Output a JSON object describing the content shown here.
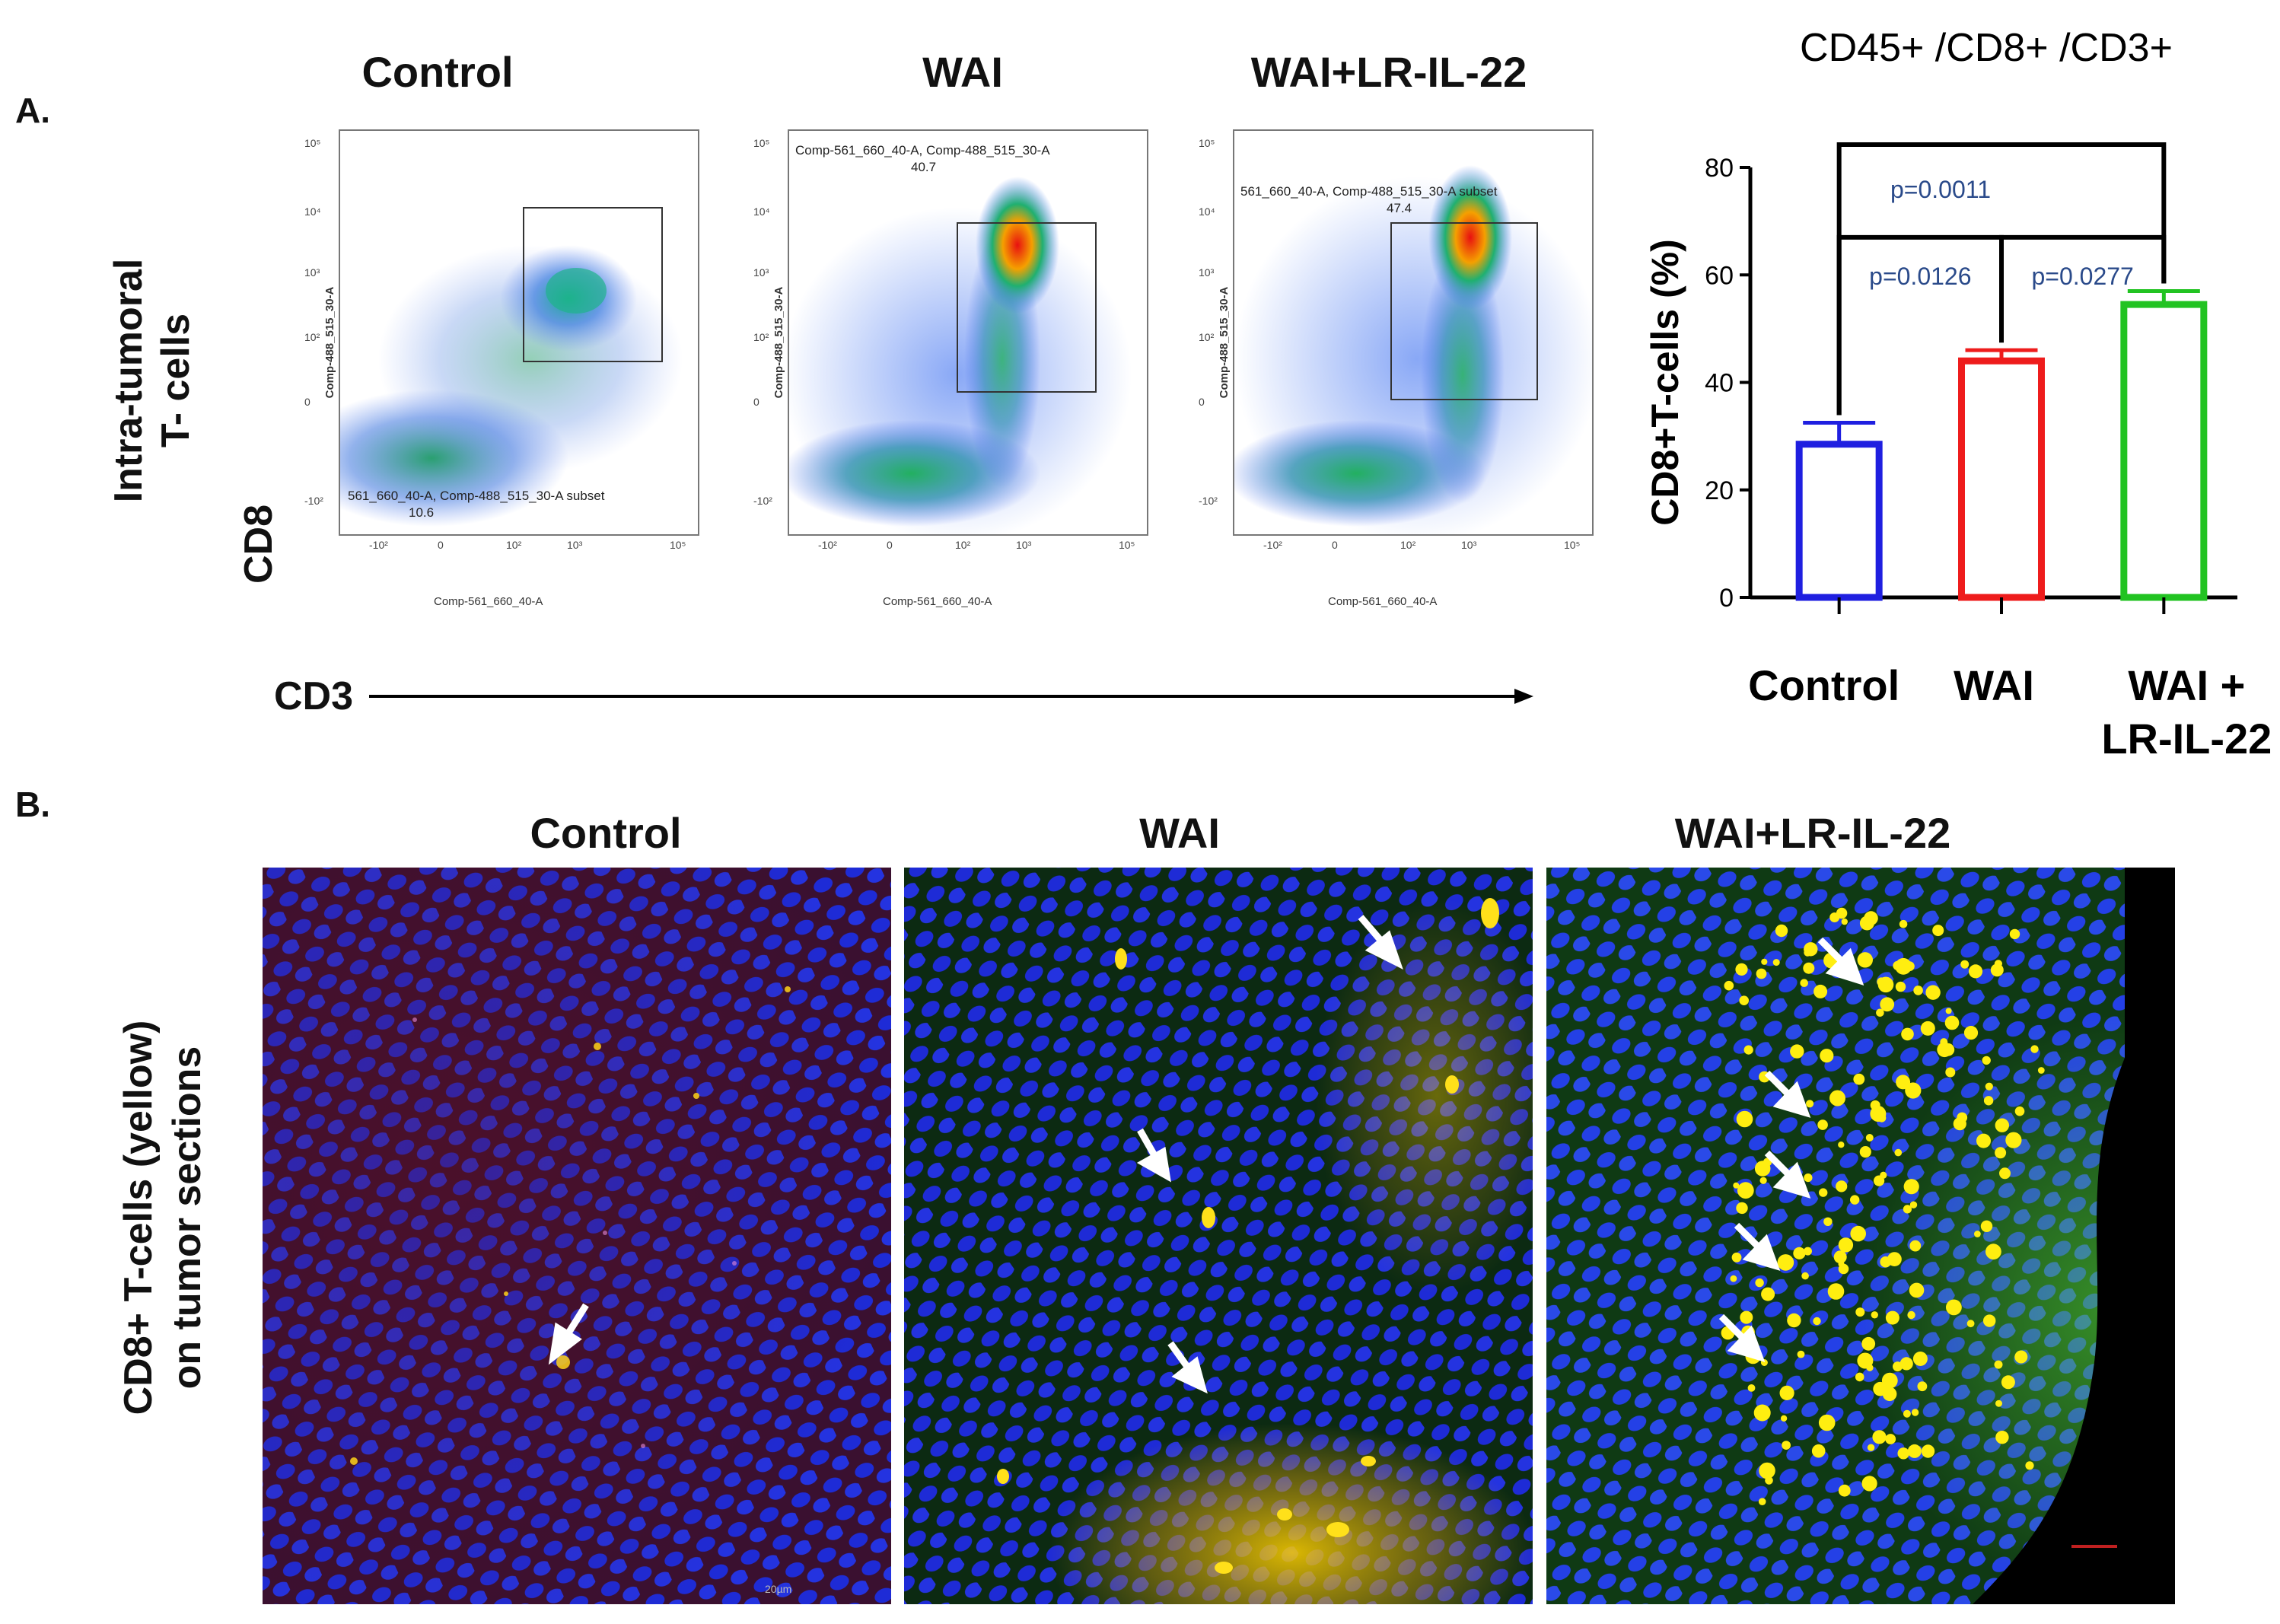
{
  "panel_a": {
    "label": "A.",
    "y_label_line1": "Intra-tumoral",
    "y_label_line2": "T- cells",
    "y_marker": "CD8",
    "x_marker": "CD3",
    "flow_plots": [
      {
        "title": "Control",
        "gate_name": "561_660_40-A, Comp-488_515_30-A subset",
        "gate_value": "10.6",
        "x_axis": "Comp-561_660_40-A",
        "y_axis": "Comp-488_515_30-A"
      },
      {
        "title": "WAI",
        "gate_name": "Comp-561_660_40-A, Comp-488_515_30-A",
        "gate_value": "40.7",
        "x_axis": "Comp-561_660_40-A",
        "y_axis": "Comp-488_515_30-A"
      },
      {
        "title": "WAI+LR-IL-22",
        "gate_name": "561_660_40-A, Comp-488_515_30-A subset",
        "gate_value": "47.4",
        "x_axis": "Comp-561_660_40-A",
        "y_axis": "Comp-488_515_30-A"
      }
    ],
    "tick_labels": {
      "x": [
        "-10²",
        "0",
        "10²",
        "10³",
        "10⁵"
      ],
      "y": [
        "-10²",
        "0",
        "10²",
        "10³",
        "10⁴",
        "10⁵"
      ]
    }
  },
  "chart_data": {
    "type": "bar",
    "title": "CD45+ /CD8+ /CD3+",
    "ylabel": "CD8+T-cells (%)",
    "xlabel": "",
    "ylim": [
      0,
      80
    ],
    "yticks": [
      0,
      20,
      40,
      60,
      80
    ],
    "categories": [
      "Control",
      "WAI",
      "WAI + LR-IL-22"
    ],
    "category_lines": [
      [
        "Control"
      ],
      [
        "WAI"
      ],
      [
        "WAI +",
        "LR-IL-22"
      ]
    ],
    "values": [
      28.5,
      44,
      54.5
    ],
    "errors": [
      4,
      2,
      2.5
    ],
    "colors": [
      "#1f1fe0",
      "#ee1c1c",
      "#22c322"
    ],
    "annotations": [
      {
        "text": "p=0.0011",
        "from": 0,
        "to": 2
      },
      {
        "text": "p=0.0126",
        "from": 0,
        "to": 1
      },
      {
        "text": "p=0.0277",
        "from": 1,
        "to": 2
      }
    ]
  },
  "panel_b": {
    "label": "B.",
    "y_label_line1": "CD8+ T-cells (yellow)",
    "y_label_line2": "on tumor sections",
    "images": [
      {
        "title": "Control"
      },
      {
        "title": "WAI"
      },
      {
        "title": "WAI+LR-IL-22"
      }
    ],
    "scale_note": "20µm"
  }
}
